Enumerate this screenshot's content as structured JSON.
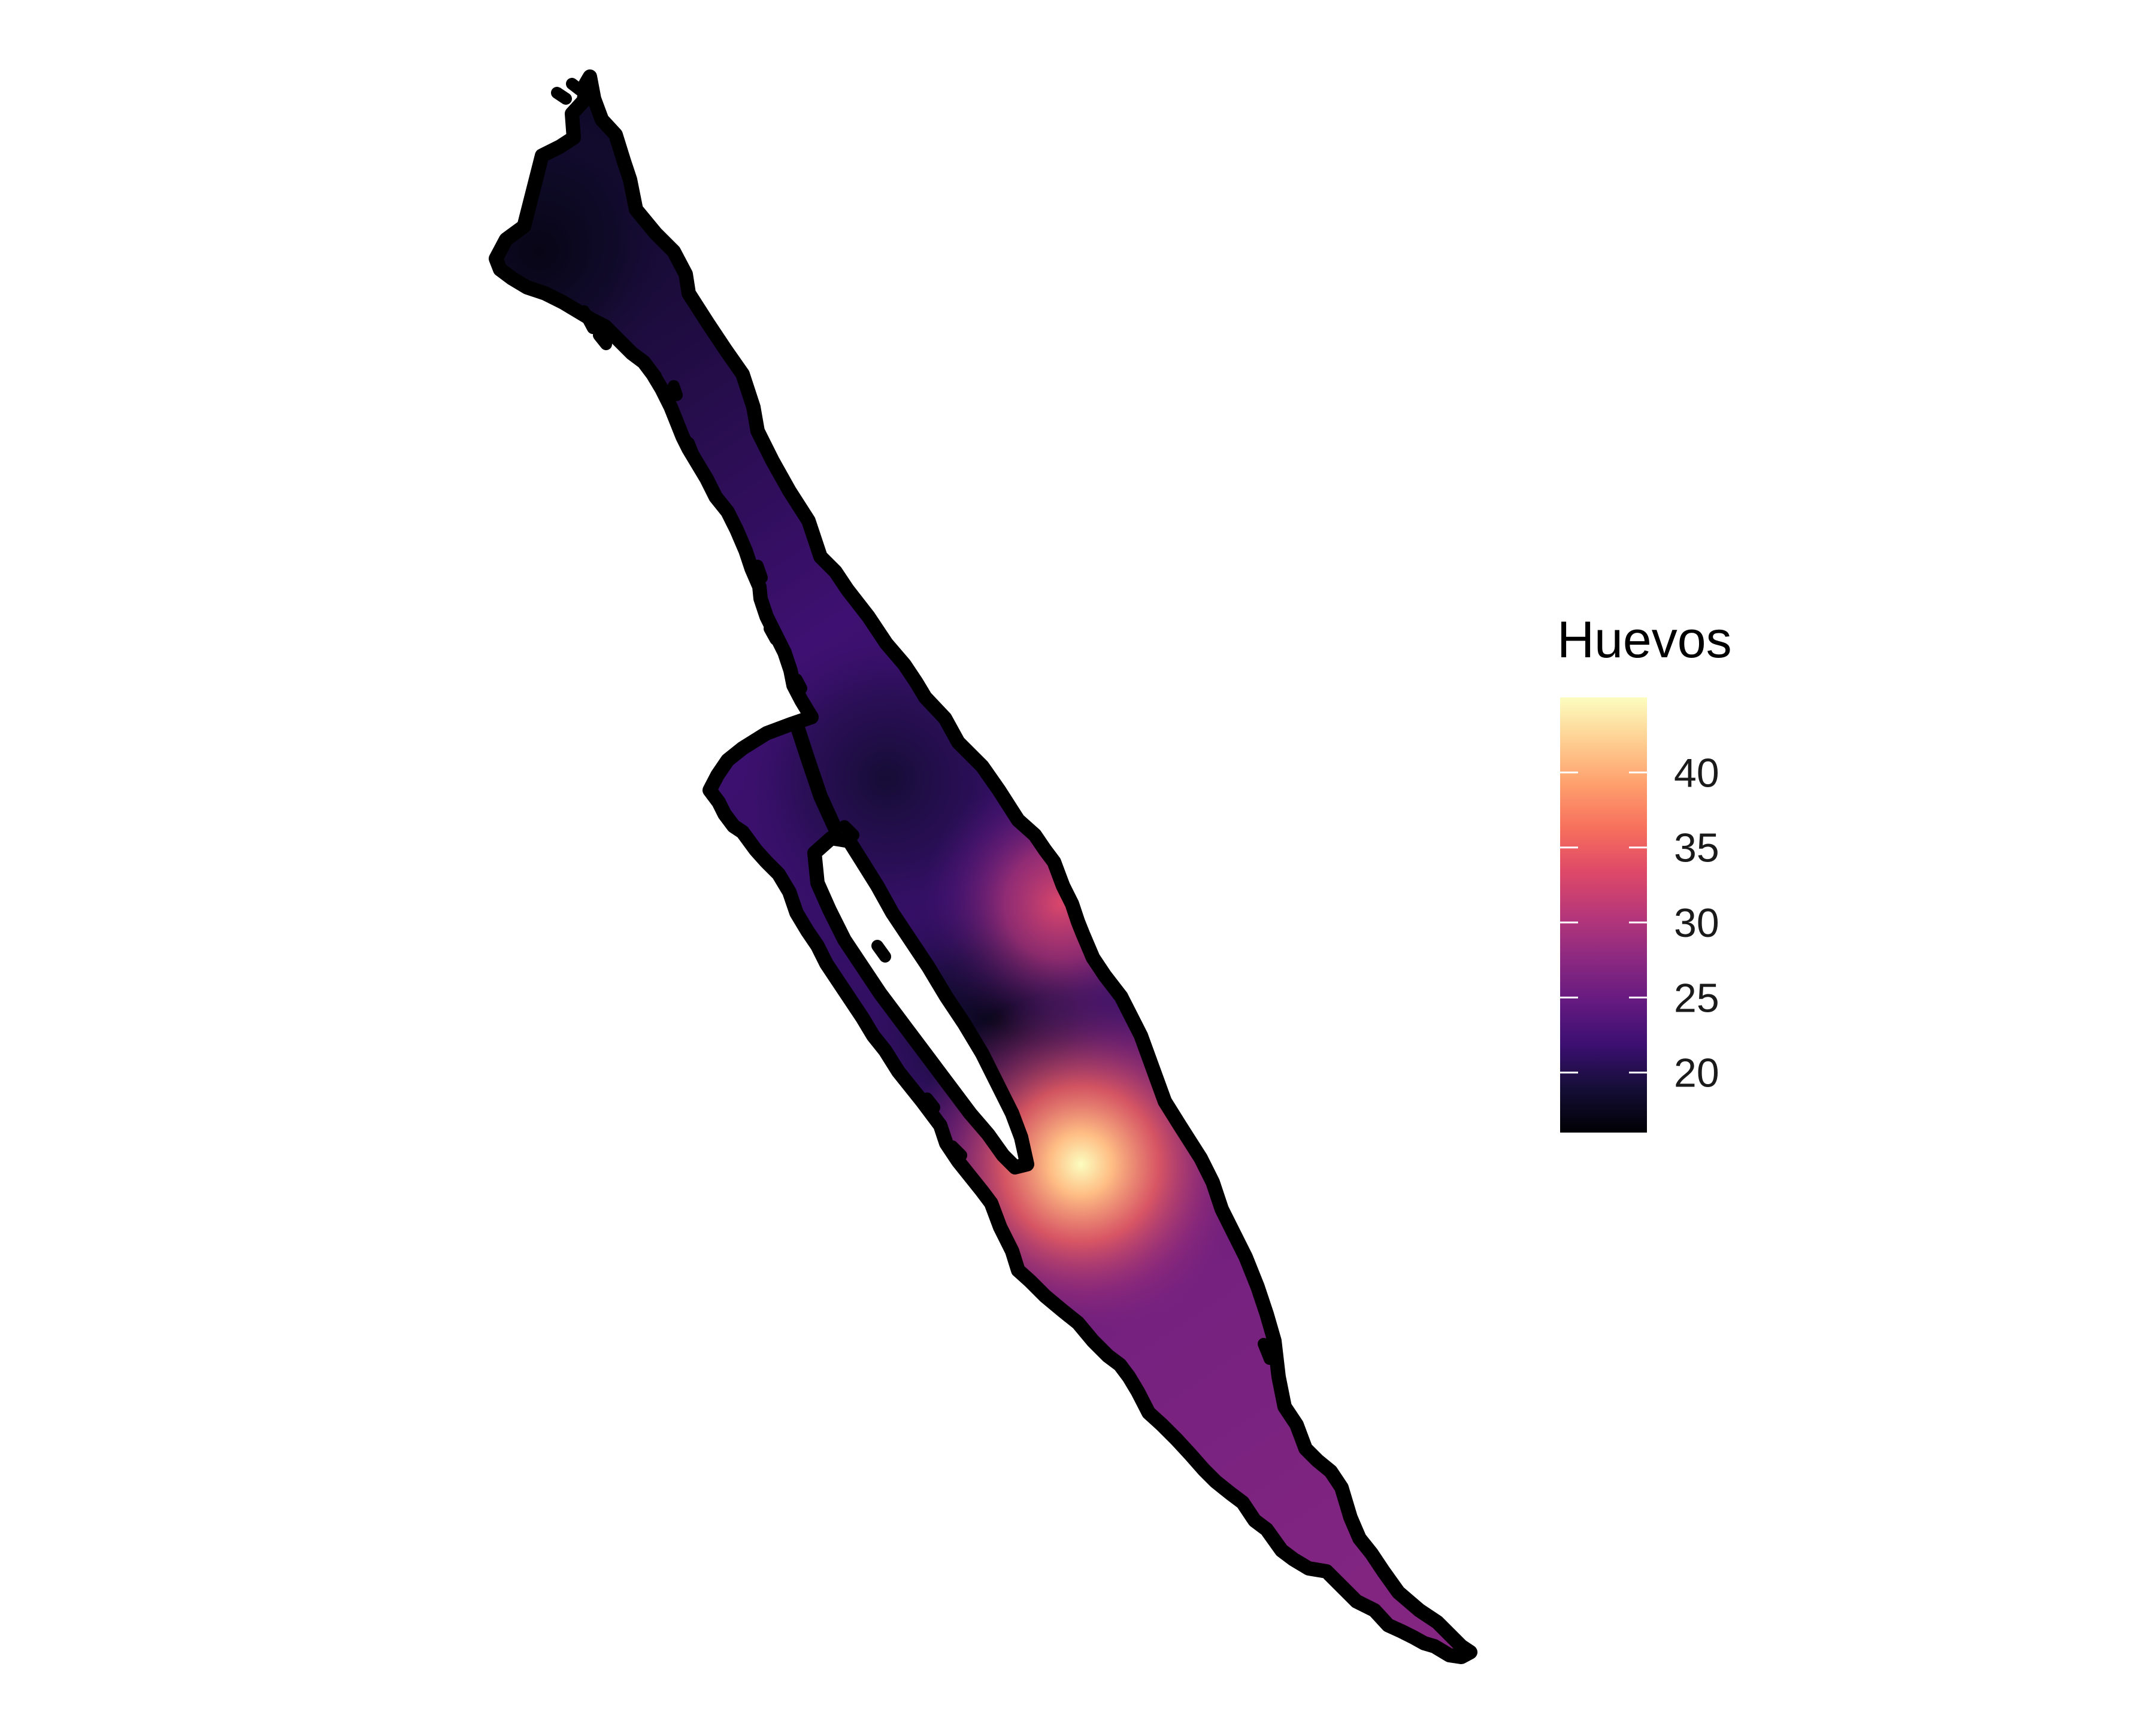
{
  "legend": {
    "title": "Huevos",
    "min": 16,
    "max": 45,
    "ticks": [
      {
        "value": 20,
        "label": "20"
      },
      {
        "value": 25,
        "label": "25"
      },
      {
        "value": 30,
        "label": "30"
      },
      {
        "value": 35,
        "label": "35"
      },
      {
        "value": 40,
        "label": "40"
      }
    ],
    "palette": [
      "#000004",
      "#140E36",
      "#3B0F70",
      "#641A80",
      "#8C2981",
      "#B73779",
      "#DE4968",
      "#F7705C",
      "#FE9F6D",
      "#FECF92",
      "#FCFDBF"
    ]
  },
  "map": {
    "outline_color": "#000000",
    "hotspots": [
      {
        "name": "main-peak",
        "value": 45
      },
      {
        "name": "upper-peak",
        "value": 33
      }
    ],
    "low_zones": [
      {
        "name": "north-lobe",
        "value": 17
      },
      {
        "name": "central-trough",
        "value": 17
      }
    ]
  }
}
